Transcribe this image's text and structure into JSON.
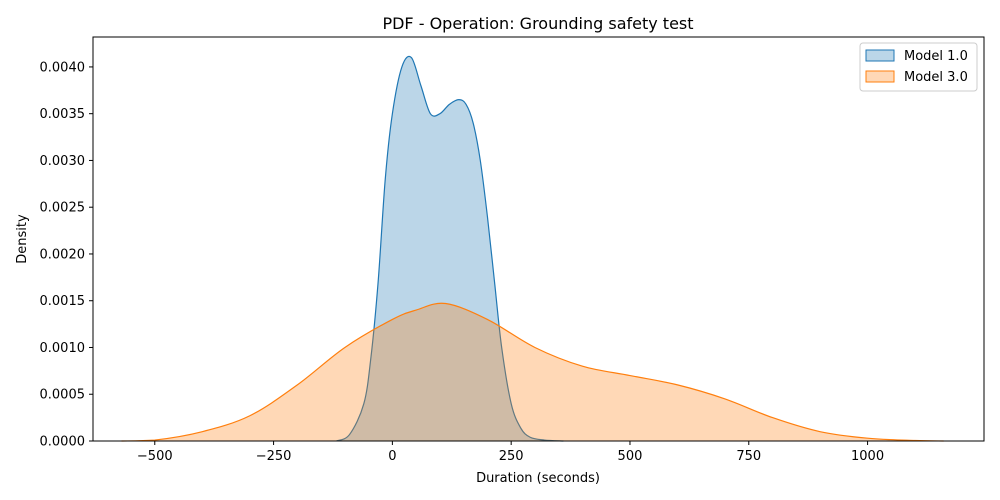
{
  "chart_data": {
    "type": "area",
    "title": "PDF - Operation: Grounding safety test",
    "xlabel": "Duration (seconds)",
    "ylabel": "Density",
    "xlim": [
      -630,
      1245
    ],
    "ylim": [
      0,
      0.00432
    ],
    "xticks": [
      -500,
      -250,
      0,
      250,
      500,
      750,
      1000
    ],
    "xtick_labels": [
      "−500",
      "−250",
      "0",
      "250",
      "500",
      "750",
      "1000"
    ],
    "yticks": [
      0,
      0.0005,
      0.001,
      0.0015,
      0.002,
      0.0025,
      0.003,
      0.0035,
      0.004
    ],
    "ytick_labels": [
      "0.0000",
      "0.0005",
      "0.0010",
      "0.0015",
      "0.0020",
      "0.0025",
      "0.0030",
      "0.0035",
      "0.0040"
    ],
    "grid": false,
    "legend_position": "top-right",
    "series": [
      {
        "name": "Model 1.0",
        "color": "#1f77b4",
        "fill_opacity": 0.3,
        "x": [
          -118,
          -90,
          -60,
          -45,
          -30,
          -15,
          0,
          20,
          40,
          60,
          80,
          100,
          120,
          140,
          155,
          170,
          185,
          200,
          215,
          230,
          250,
          270,
          290,
          320,
          360
        ],
        "y": [
          0,
          7e-05,
          0.0004,
          0.0009,
          0.0017,
          0.0028,
          0.0035,
          0.004,
          0.0041,
          0.0038,
          0.0035,
          0.0035,
          0.0036,
          0.00365,
          0.0036,
          0.0034,
          0.003,
          0.0024,
          0.0017,
          0.001,
          0.0004,
          0.00014,
          4e-05,
          1e-05,
          0
        ]
      },
      {
        "name": "Model 3.0",
        "color": "#ff7f0e",
        "fill_opacity": 0.3,
        "x": [
          -570,
          -500,
          -400,
          -300,
          -200,
          -100,
          0,
          50,
          112,
          200,
          300,
          400,
          500,
          600,
          700,
          800,
          900,
          1000,
          1100,
          1160
        ],
        "y": [
          0,
          1e-05,
          0.0001,
          0.00027,
          0.0006,
          0.001,
          0.0013,
          0.0014,
          0.00147,
          0.0013,
          0.001,
          0.0008,
          0.0007,
          0.0006,
          0.00045,
          0.00025,
          0.0001,
          3e-05,
          5e-06,
          0
        ]
      }
    ]
  }
}
